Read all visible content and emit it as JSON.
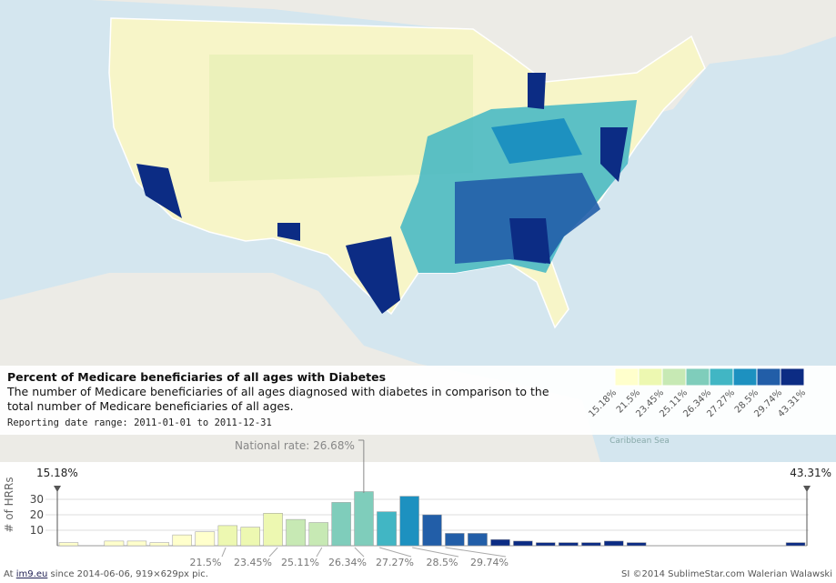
{
  "title": "Percent of Medicare beneficiaries of all ages with Diabetes",
  "description": "The number of Medicare beneficiaries of all ages diagnosed with diabetes in comparison to the total number of Medicare beneficiaries of all ages.",
  "date_range": "Reporting date range: 2011-01-01 to 2011-12-31",
  "map_label": "Caribbean Sea",
  "legend": {
    "colors": [
      "#ffffcc",
      "#edf8b1",
      "#c7e9b4",
      "#7fcdbb",
      "#41b6c4",
      "#1d91c0",
      "#225ea8",
      "#0c2c84"
    ],
    "breaks": [
      {
        "value": 15.18,
        "label": "15.18%"
      },
      {
        "value": 21.5,
        "label": "21.5%"
      },
      {
        "value": 23.45,
        "label": "23.45%"
      },
      {
        "value": 25.11,
        "label": "25.11%"
      },
      {
        "value": 26.34,
        "label": "26.34%"
      },
      {
        "value": 27.27,
        "label": "27.27%"
      },
      {
        "value": 28.5,
        "label": "28.5%"
      },
      {
        "value": 29.74,
        "label": "29.74%"
      },
      {
        "value": 43.31,
        "label": "43.31%"
      }
    ]
  },
  "chart_data": {
    "type": "histogram",
    "ylabel": "# of HRRs",
    "national_rate": {
      "value": 26.68,
      "label": "National rate: 26.68%"
    },
    "bins": [
      15.18,
      16.03,
      16.88,
      17.74,
      18.59,
      19.44,
      20.29,
      21.15,
      22.0,
      22.85,
      23.7,
      24.56,
      25.41,
      26.26,
      27.11,
      27.97,
      28.82,
      29.67,
      30.52,
      31.38,
      32.23,
      33.08,
      33.93,
      34.79,
      35.64,
      36.49,
      37.34,
      38.2,
      39.05,
      39.9,
      40.75,
      41.61,
      42.46,
      43.31
    ],
    "values": [
      2,
      0,
      3,
      3,
      2,
      7,
      9,
      13,
      12,
      21,
      17,
      15,
      28,
      35,
      22,
      32,
      20,
      8,
      8,
      4,
      3,
      2,
      2,
      2,
      3,
      2,
      0,
      0,
      0,
      0,
      0,
      0,
      2
    ],
    "colors": [
      "#ffffcc",
      "#ffffcc",
      "#ffffcc",
      "#ffffcc",
      "#ffffcc",
      "#ffffcc",
      "#ffffcc",
      "#edf8b1",
      "#edf8b1",
      "#edf8b1",
      "#c7e9b4",
      "#c7e9b4",
      "#7fcdbb",
      "#7fcdbb",
      "#41b6c4",
      "#1d91c0",
      "#225ea8",
      "#225ea8",
      "#225ea8",
      "#0c2c84",
      "#0c2c84",
      "#0c2c84",
      "#0c2c84",
      "#0c2c84",
      "#0c2c84",
      "#0c2c84",
      "#0c2c84",
      "#0c2c84",
      "#0c2c84",
      "#0c2c84",
      "#0c2c84",
      "#0c2c84",
      "#0c2c84"
    ],
    "xlim": [
      15.18,
      43.31
    ],
    "ylim": [
      0,
      40
    ],
    "yticks": [
      10,
      20,
      30
    ],
    "grid": true
  },
  "footer": {
    "left_prefix": "At",
    "left_link": "im9.eu",
    "left_suffix": "since 2014-06-06, 919×629px pic.",
    "right": "SI ©2014 SublimeStar.com Walerian Walawski"
  }
}
